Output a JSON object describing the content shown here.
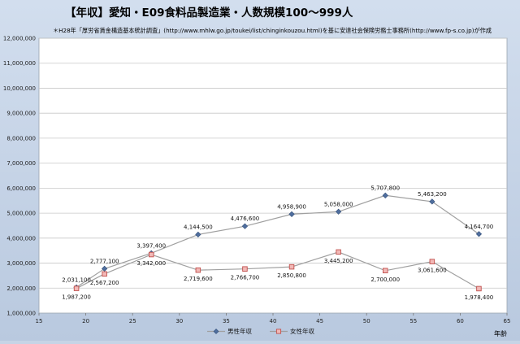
{
  "chart_data": {
    "type": "line",
    "title": "【年収】愛知・E09食料品製造業・人数規模100～999人",
    "subtitle": "＊H28年「厚労省賃金構造基本統計調査」(http://www.mhlw.go.jp/toukei/list/chinginkouzou.html)を基に安達社会保険労務士事務所(http://www.fp-s.co.jp)が作成",
    "xlabel": "年齢",
    "ylabel": "",
    "xlim": [
      15,
      65
    ],
    "ylim": [
      1000000,
      12000000
    ],
    "x_ticks": [
      15,
      20,
      25,
      30,
      35,
      40,
      45,
      50,
      55,
      60,
      65
    ],
    "y_ticks": [
      1000000,
      2000000,
      3000000,
      4000000,
      5000000,
      6000000,
      7000000,
      8000000,
      9000000,
      10000000,
      11000000,
      12000000
    ],
    "y_tick_labels": [
      "1,000,000",
      "2,000,000",
      "3,000,000",
      "4,000,000",
      "5,000,000",
      "6,000,000",
      "7,000,000",
      "8,000,000",
      "9,000,000",
      "10,000,000",
      "11,000,000",
      "12,000,000"
    ],
    "grid": "horizontal",
    "legend_position": "bottom",
    "x": [
      19,
      22,
      27,
      32,
      37,
      42,
      47,
      52,
      57,
      62
    ],
    "series": [
      {
        "name": "男性年収",
        "color": "#4f6e9e",
        "marker": "diamond",
        "values": [
          2031100,
          2777100,
          3397400,
          4144500,
          4476600,
          4958900,
          5058000,
          5707800,
          5463200,
          4164700
        ],
        "labels": [
          "2,031,100",
          "2,777,100",
          "3,397,400",
          "4,144,500",
          "4,476,600",
          "4,958,900",
          "5,058,000",
          "5,707,800",
          "5,463,200",
          "4,164,700"
        ]
      },
      {
        "name": "女性年収",
        "color": "#c0504d",
        "marker": "square",
        "values": [
          1987200,
          2567200,
          3342000,
          2719600,
          2766700,
          2850800,
          3445200,
          2700000,
          3061600,
          1978400
        ],
        "labels": [
          "1,987,200",
          "2,567,200",
          "3,342,000",
          "2,719,600",
          "2,766,700",
          "2,850,800",
          "3,445,200",
          "2,700,000",
          "3,061,600",
          "1,978,400"
        ]
      }
    ]
  }
}
